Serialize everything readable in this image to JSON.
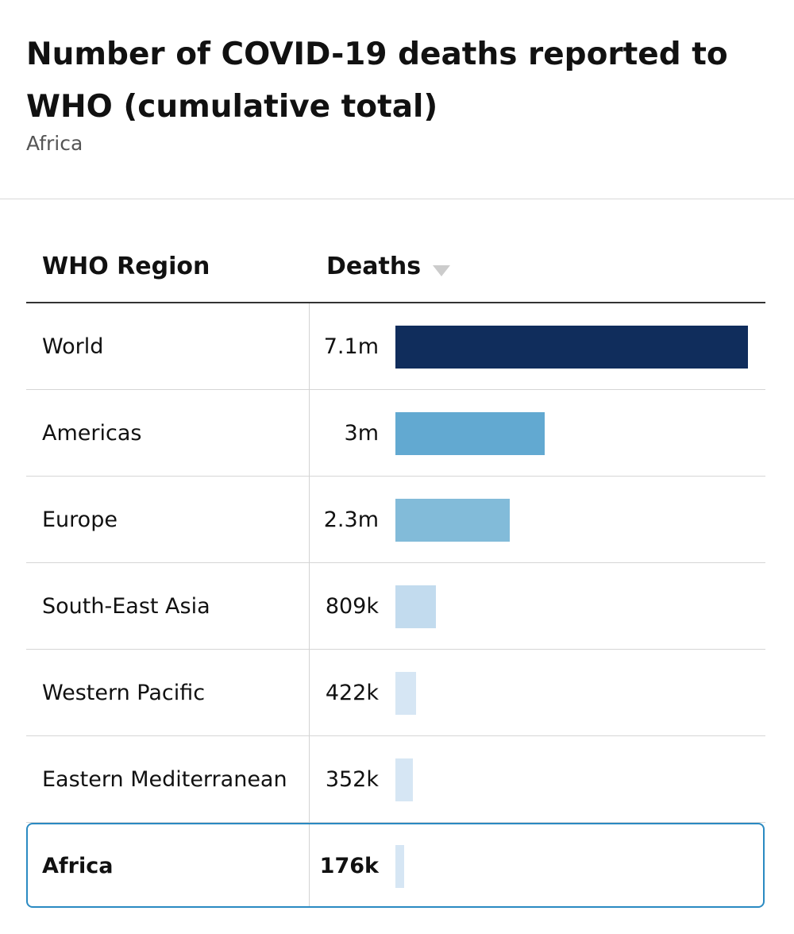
{
  "header": {
    "title": "Number of COVID-19 deaths reported to WHO (cumulative total)",
    "subtitle": "Africa"
  },
  "table": {
    "col_region": "WHO Region",
    "col_deaths": "Deaths",
    "sort": "descending",
    "selected": "Africa"
  },
  "colors": {
    "world": "#102d5c",
    "americas": "#62a9d1",
    "europe": "#82bbd9",
    "south_east_asia": "#c2dbee",
    "light": "#d6e6f4",
    "highlight_border": "#2a8ac2"
  },
  "chart_data": {
    "type": "bar",
    "orientation": "horizontal",
    "title": "Number of COVID-19 deaths reported to WHO (cumulative total)",
    "subtitle": "Africa",
    "categories": [
      "World",
      "Americas",
      "Europe",
      "South-East Asia",
      "Western Pacific",
      "Eastern Mediterranean",
      "Africa"
    ],
    "values": [
      7100000,
      3000000,
      2300000,
      809000,
      422000,
      352000,
      176000
    ],
    "value_labels": [
      "7.1m",
      "3m",
      "2.3m",
      "809k",
      "422k",
      "352k",
      "176k"
    ],
    "bar_colors": [
      "#102d5c",
      "#62a9d1",
      "#82bbd9",
      "#c2dbee",
      "#d6e6f4",
      "#d6e6f4",
      "#d6e6f4"
    ],
    "xlim": [
      0,
      7100000
    ],
    "grid": false
  }
}
